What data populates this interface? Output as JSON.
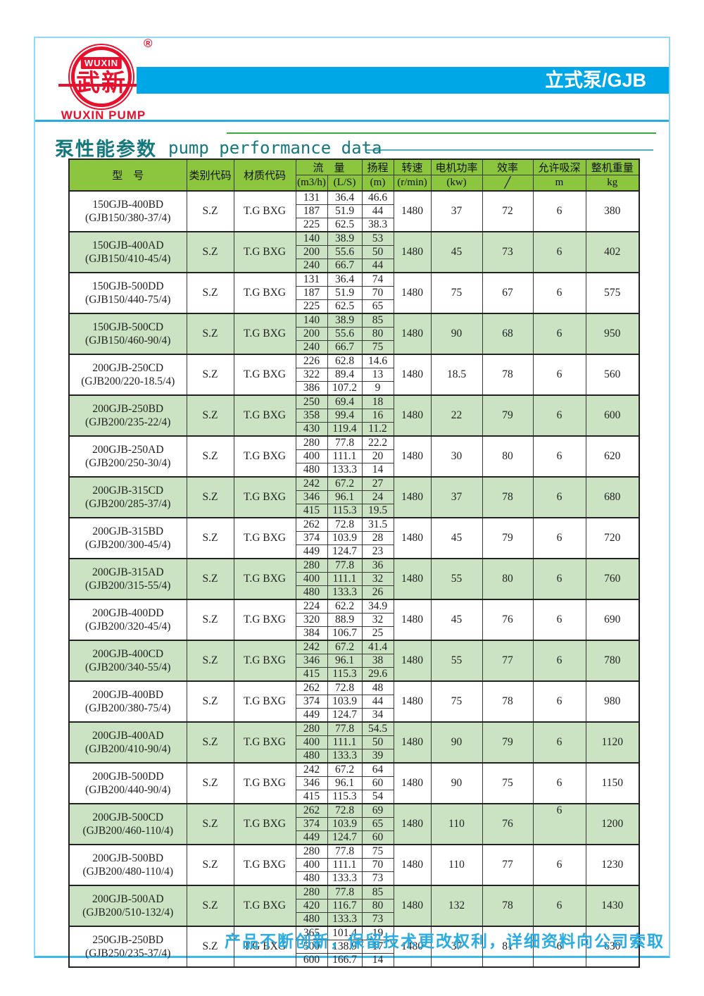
{
  "logo": {
    "brand": "WUXIN",
    "brand_cn": "武新",
    "registered": "®",
    "caption": "WUXIN PUMP"
  },
  "banner": {
    "label": "立式泵/GJB"
  },
  "title": {
    "zh": "泵性能参数",
    "en": "pump performance data"
  },
  "footer": {
    "note": "产品不断创新，保留技术更改权利，详细资料向公司索取"
  },
  "colors": {
    "banner_blue": "#00a7e7",
    "border_cyan": "#8fd9f7",
    "divider_blue": "#29abe2",
    "header_green": "#8cc63f",
    "row_green": "#cbe3c3",
    "logo_red": "#e8112d",
    "title_teal": "#15787c",
    "footer_cyan": "#2aace3"
  },
  "table": {
    "headers": {
      "model": "型　号",
      "class_code": "类别代码",
      "material_code": "材质代码",
      "flow": "流　量",
      "flow_m3h": "(m3/h)",
      "flow_ls": "(L/S)",
      "head": "扬程",
      "head_unit": "(m)",
      "speed": "转速",
      "speed_unit": "(r/min)",
      "power": "电机功率",
      "power_unit": "(kw)",
      "efficiency": "效率",
      "efficiency_unit": "╱",
      "suction": "允许吸深",
      "suction_unit": "m",
      "weight": "整机重量",
      "weight_unit": "kg"
    },
    "rows": [
      {
        "model": "150GJB-400BD",
        "model_alt": "(GJB150/380-37/4)",
        "class_code": "S.Z",
        "material_code": "T.G BXG",
        "flow_m3h": [
          "131",
          "187",
          "225"
        ],
        "flow_ls": [
          "36.4",
          "51.9",
          "62.5"
        ],
        "head": [
          "46.6",
          "44",
          "38.3"
        ],
        "speed": "1480",
        "power": "37",
        "efficiency": "72",
        "suction": "6",
        "weight": "380",
        "shaded": false
      },
      {
        "model": "150GJB-400AD",
        "model_alt": "(GJB150/410-45/4)",
        "class_code": "S.Z",
        "material_code": "T.G BXG",
        "flow_m3h": [
          "140",
          "200",
          "240"
        ],
        "flow_ls": [
          "38.9",
          "55.6",
          "66.7"
        ],
        "head": [
          "53",
          "50",
          "44"
        ],
        "speed": "1480",
        "power": "45",
        "efficiency": "73",
        "suction": "6",
        "weight": "402",
        "shaded": true
      },
      {
        "model": "150GJB-500DD",
        "model_alt": "(GJB150/440-75/4)",
        "class_code": "S.Z",
        "material_code": "T.G BXG",
        "flow_m3h": [
          "131",
          "187",
          "225"
        ],
        "flow_ls": [
          "36.4",
          "51.9",
          "62.5"
        ],
        "head": [
          "74",
          "70",
          "65"
        ],
        "speed": "1480",
        "power": "75",
        "efficiency": "67",
        "suction": "6",
        "weight": "575",
        "shaded": false
      },
      {
        "model": "150GJB-500CD",
        "model_alt": "(GJB150/460-90/4)",
        "class_code": "S.Z",
        "material_code": "T.G BXG",
        "flow_m3h": [
          "140",
          "200",
          "240"
        ],
        "flow_ls": [
          "38.9",
          "55.6",
          "66.7"
        ],
        "head": [
          "85",
          "80",
          "75"
        ],
        "speed": "1480",
        "power": "90",
        "efficiency": "68",
        "suction": "6",
        "weight": "950",
        "shaded": true
      },
      {
        "model": "200GJB-250CD",
        "model_alt": "(GJB200/220-18.5/4)",
        "class_code": "S.Z",
        "material_code": "T.G BXG",
        "flow_m3h": [
          "226",
          "322",
          "386"
        ],
        "flow_ls": [
          "62.8",
          "89.4",
          "107.2"
        ],
        "head": [
          "14.6",
          "13",
          "9"
        ],
        "speed": "1480",
        "power": "18.5",
        "efficiency": "78",
        "suction": "6",
        "weight": "560",
        "shaded": false
      },
      {
        "model": "200GJB-250BD",
        "model_alt": "(GJB200/235-22/4)",
        "class_code": "S.Z",
        "material_code": "T.G BXG",
        "flow_m3h": [
          "250",
          "358",
          "430"
        ],
        "flow_ls": [
          "69.4",
          "99.4",
          "119.4"
        ],
        "head": [
          "18",
          "16",
          "11.2"
        ],
        "speed": "1480",
        "power": "22",
        "efficiency": "79",
        "suction": "6",
        "weight": "600",
        "shaded": true
      },
      {
        "model": "200GJB-250AD",
        "model_alt": "(GJB200/250-30/4)",
        "class_code": "S.Z",
        "material_code": "T.G BXG",
        "flow_m3h": [
          "280",
          "400",
          "480"
        ],
        "flow_ls": [
          "77.8",
          "111.1",
          "133.3"
        ],
        "head": [
          "22.2",
          "20",
          "14"
        ],
        "speed": "1480",
        "power": "30",
        "efficiency": "80",
        "suction": "6",
        "weight": "620",
        "shaded": false
      },
      {
        "model": "200GJB-315CD",
        "model_alt": "(GJB200/285-37/4)",
        "class_code": "S.Z",
        "material_code": "T.G BXG",
        "flow_m3h": [
          "242",
          "346",
          "415"
        ],
        "flow_ls": [
          "67.2",
          "96.1",
          "115.3"
        ],
        "head": [
          "27",
          "24",
          "19.5"
        ],
        "speed": "1480",
        "power": "37",
        "efficiency": "78",
        "suction": "6",
        "weight": "680",
        "shaded": true
      },
      {
        "model": "200GJB-315BD",
        "model_alt": "(GJB200/300-45/4)",
        "class_code": "S.Z",
        "material_code": "T.G BXG",
        "flow_m3h": [
          "262",
          "374",
          "449"
        ],
        "flow_ls": [
          "72.8",
          "103.9",
          "124.7"
        ],
        "head": [
          "31.5",
          "28",
          "23"
        ],
        "speed": "1480",
        "power": "45",
        "efficiency": "79",
        "suction": "6",
        "weight": "720",
        "shaded": false
      },
      {
        "model": "200GJB-315AD",
        "model_alt": "(GJB200/315-55/4)",
        "class_code": "S.Z",
        "material_code": "T.G BXG",
        "flow_m3h": [
          "280",
          "400",
          "480"
        ],
        "flow_ls": [
          "77.8",
          "111.1",
          "133.3"
        ],
        "head": [
          "36",
          "32",
          "26"
        ],
        "speed": "1480",
        "power": "55",
        "efficiency": "80",
        "suction": "6",
        "weight": "760",
        "shaded": true
      },
      {
        "model": "200GJB-400DD",
        "model_alt": "(GJB200/320-45/4)",
        "class_code": "S.Z",
        "material_code": "T.G BXG",
        "flow_m3h": [
          "224",
          "320",
          "384"
        ],
        "flow_ls": [
          "62.2",
          "88.9",
          "106.7"
        ],
        "head": [
          "34.9",
          "32",
          "25"
        ],
        "speed": "1480",
        "power": "45",
        "efficiency": "76",
        "suction": "6",
        "weight": "690",
        "shaded": false
      },
      {
        "model": "200GJB-400CD",
        "model_alt": "(GJB200/340-55/4)",
        "class_code": "S.Z",
        "material_code": "T.G BXG",
        "flow_m3h": [
          "242",
          "346",
          "415"
        ],
        "flow_ls": [
          "67.2",
          "96.1",
          "115.3"
        ],
        "head": [
          "41.4",
          "38",
          "29.6"
        ],
        "speed": "1480",
        "power": "55",
        "efficiency": "77",
        "suction": "6",
        "weight": "780",
        "shaded": true
      },
      {
        "model": "200GJB-400BD",
        "model_alt": "(GJB200/380-75/4)",
        "class_code": "S.Z",
        "material_code": "T.G BXG",
        "flow_m3h": [
          "262",
          "374",
          "449"
        ],
        "flow_ls": [
          "72.8",
          "103.9",
          "124.7"
        ],
        "head": [
          "48",
          "44",
          "34"
        ],
        "speed": "1480",
        "power": "75",
        "efficiency": "78",
        "suction": "6",
        "weight": "980",
        "shaded": false
      },
      {
        "model": "200GJB-400AD",
        "model_alt": "(GJB200/410-90/4)",
        "class_code": "S.Z",
        "material_code": "T.G BXG",
        "flow_m3h": [
          "280",
          "400",
          "480"
        ],
        "flow_ls": [
          "77.8",
          "111.1",
          "133.3"
        ],
        "head": [
          "54.5",
          "50",
          "39"
        ],
        "speed": "1480",
        "power": "90",
        "efficiency": "79",
        "suction": "6",
        "weight": "1120",
        "shaded": true
      },
      {
        "model": "200GJB-500DD",
        "model_alt": "(GJB200/440-90/4)",
        "class_code": "S.Z",
        "material_code": "T.G BXG",
        "flow_m3h": [
          "242",
          "346",
          "415"
        ],
        "flow_ls": [
          "67.2",
          "96.1",
          "115.3"
        ],
        "head": [
          "64",
          "60",
          "54"
        ],
        "speed": "1480",
        "power": "90",
        "efficiency": "75",
        "suction": "6",
        "weight": "1150",
        "shaded": false
      },
      {
        "model": "200GJB-500CD",
        "model_alt": "(GJB200/460-110/4)",
        "class_code": "S.Z",
        "material_code": "T.G BXG",
        "flow_m3h": [
          "262",
          "374",
          "449"
        ],
        "flow_ls": [
          "72.8",
          "103.9",
          "124.7"
        ],
        "head": [
          "69",
          "65",
          "60"
        ],
        "speed": "1480",
        "power": "110",
        "efficiency": "76",
        "suction": "6",
        "weight": "1200",
        "shaded": true,
        "suction_top": true
      },
      {
        "model": "200GJB-500BD",
        "model_alt": "(GJB200/480-110/4)",
        "class_code": "S.Z",
        "material_code": "T.G BXG",
        "flow_m3h": [
          "280",
          "400",
          "480"
        ],
        "flow_ls": [
          "77.8",
          "111.1",
          "133.3"
        ],
        "head": [
          "75",
          "70",
          "73"
        ],
        "speed": "1480",
        "power": "110",
        "efficiency": "77",
        "suction": "6",
        "weight": "1230",
        "shaded": false
      },
      {
        "model": "200GJB-500AD",
        "model_alt": "(GJB200/510-132/4)",
        "class_code": "S.Z",
        "material_code": "T.G BXG",
        "flow_m3h": [
          "280",
          "420",
          "480"
        ],
        "flow_ls": [
          "77.8",
          "116.7",
          "133.3"
        ],
        "head": [
          "85",
          "80",
          "73"
        ],
        "speed": "1480",
        "power": "132",
        "efficiency": "78",
        "suction": "6",
        "weight": "1430",
        "shaded": true
      },
      {
        "model": "250GJB-250BD",
        "model_alt": "(GJB250/235-37/4)",
        "class_code": "S.Z",
        "material_code": "T.G BXG",
        "flow_m3h": [
          "365",
          "500",
          "600"
        ],
        "flow_ls": [
          "101.4",
          "138.9",
          "166.7"
        ],
        "head": [
          "19",
          "17",
          "14"
        ],
        "speed": "1480",
        "power": "37",
        "efficiency": "81",
        "suction": "6",
        "weight": "630",
        "shaded": false
      }
    ]
  }
}
